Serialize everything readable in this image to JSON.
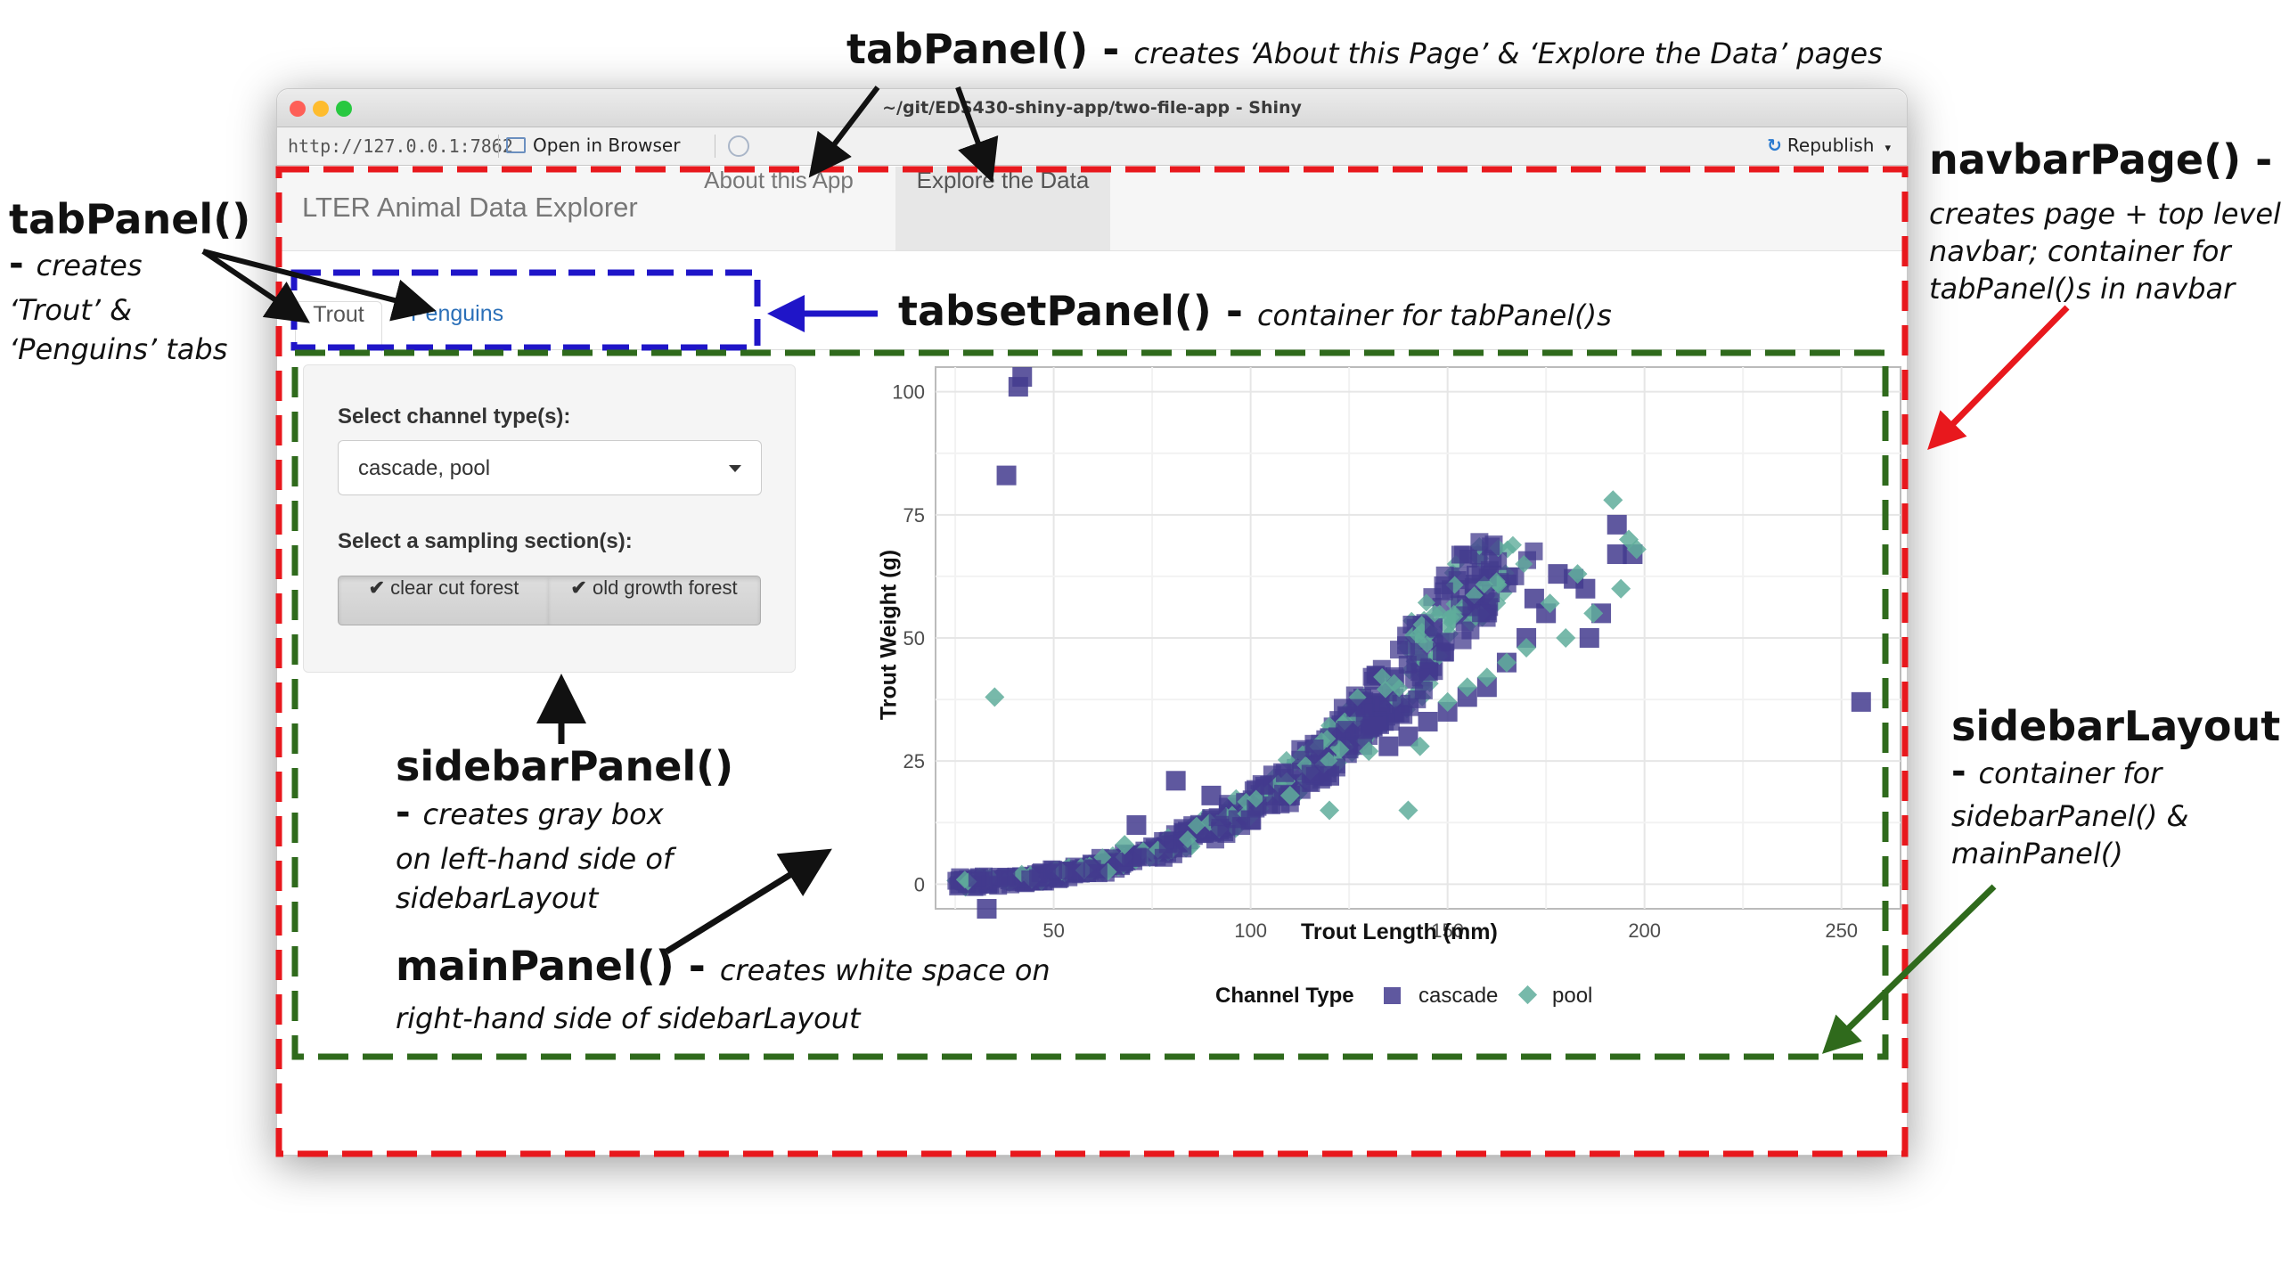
{
  "window": {
    "title": "~/git/EDS430-shiny-app/two-file-app - Shiny",
    "url": "http://127.0.0.1:7862",
    "open_in_browser": "Open in Browser",
    "republish": "Republish"
  },
  "app": {
    "brand": "LTER Animal Data Explorer",
    "nav_tabs": [
      "About this App",
      "Explore the Data"
    ],
    "sub_tabs": [
      "Trout",
      "Penguins"
    ],
    "sidebar": {
      "channel_label": "Select channel type(s):",
      "channel_value": "cascade, pool",
      "section_label": "Select a sampling section(s):",
      "section_buttons": [
        "clear cut forest",
        "old growth forest"
      ]
    }
  },
  "annotations": {
    "tabpanel_top": {
      "title": "tabPanel()",
      "dash": " - ",
      "desc": "creates ‘About this Page’ & ‘Explore the Data’ pages"
    },
    "tabpanel_left": {
      "title": "tabPanel()",
      "dash": "- ",
      "desc_lines": [
        "creates",
        "‘Trout’ &",
        "‘Penguins’ tabs"
      ]
    },
    "tabsetpanel": {
      "title": "tabsetPanel()",
      "dash": " - ",
      "desc": "container for tabPanel()s"
    },
    "navbarpage": {
      "title": "navbarPage()",
      "dash": " -",
      "desc_lines": [
        "creates page + top level",
        "navbar; container for",
        "tabPanel()s in navbar"
      ]
    },
    "sidebarpanel": {
      "title": "sidebarPanel()",
      "dash": "- ",
      "desc_lines": [
        "creates gray box",
        "on left-hand side  of",
        "sidebarLayout"
      ]
    },
    "mainpanel": {
      "title": "mainPanel()",
      "dash": " - ",
      "desc": "creates white space on",
      "desc2": "right-hand side of sidebarLayout"
    },
    "sidebarlayout": {
      "title": "sidebarLayout()",
      "dash": "- ",
      "desc_lines": [
        "container for",
        "sidebarPanel() &",
        "mainPanel()"
      ]
    }
  },
  "colors": {
    "navbarpage_box": "#e8181d",
    "tabset_box": "#1f15c8",
    "sidebarlayout_box": "#2f6a1c",
    "cascade": "#433b8e",
    "pool": "#5fad9b"
  },
  "chart_data": {
    "type": "scatter",
    "xlabel": "Trout Length (mm)",
    "ylabel": "Trout Weight (g)",
    "xlim": [
      20,
      265
    ],
    "ylim": [
      -5,
      105
    ],
    "xticks": [
      50,
      100,
      150,
      200,
      250
    ],
    "yticks": [
      0,
      25,
      50,
      75,
      100
    ],
    "grid": true,
    "legend": {
      "title": "Channel Type",
      "position": "bottom"
    },
    "series": [
      {
        "name": "cascade",
        "marker": "square",
        "points": [
          [
            38,
            83
          ],
          [
            41,
            101
          ],
          [
            42,
            103
          ],
          [
            33,
            -5
          ],
          [
            255,
            37
          ],
          [
            81,
            21
          ],
          [
            71,
            12
          ],
          [
            90,
            18
          ],
          [
            131,
            32
          ],
          [
            193,
            73
          ],
          [
            193,
            67
          ],
          [
            197,
            67
          ],
          [
            189,
            55
          ],
          [
            172,
            58
          ],
          [
            178,
            63
          ],
          [
            182,
            62
          ],
          [
            186,
            50
          ],
          [
            150,
            35
          ],
          [
            160,
            40
          ],
          [
            120,
            22
          ],
          [
            110,
            18
          ],
          [
            100,
            13
          ],
          [
            140,
            30
          ],
          [
            165,
            45
          ],
          [
            175,
            55
          ],
          [
            185,
            60
          ],
          [
            170,
            50
          ],
          [
            155,
            38
          ],
          [
            145,
            33
          ],
          [
            135,
            28
          ]
        ]
      },
      {
        "name": "pool",
        "marker": "diamond",
        "points": [
          [
            35,
            38
          ],
          [
            68,
            8
          ],
          [
            120,
            15
          ],
          [
            140,
            15
          ],
          [
            143,
            28
          ],
          [
            192,
            78
          ],
          [
            196,
            70
          ],
          [
            198,
            68
          ],
          [
            194,
            60
          ],
          [
            187,
            55
          ],
          [
            180,
            50
          ],
          [
            170,
            48
          ],
          [
            160,
            42
          ],
          [
            150,
            37
          ],
          [
            130,
            27
          ],
          [
            110,
            18
          ],
          [
            176,
            57
          ],
          [
            183,
            63
          ],
          [
            165,
            45
          ],
          [
            155,
            40
          ]
        ]
      }
    ]
  }
}
